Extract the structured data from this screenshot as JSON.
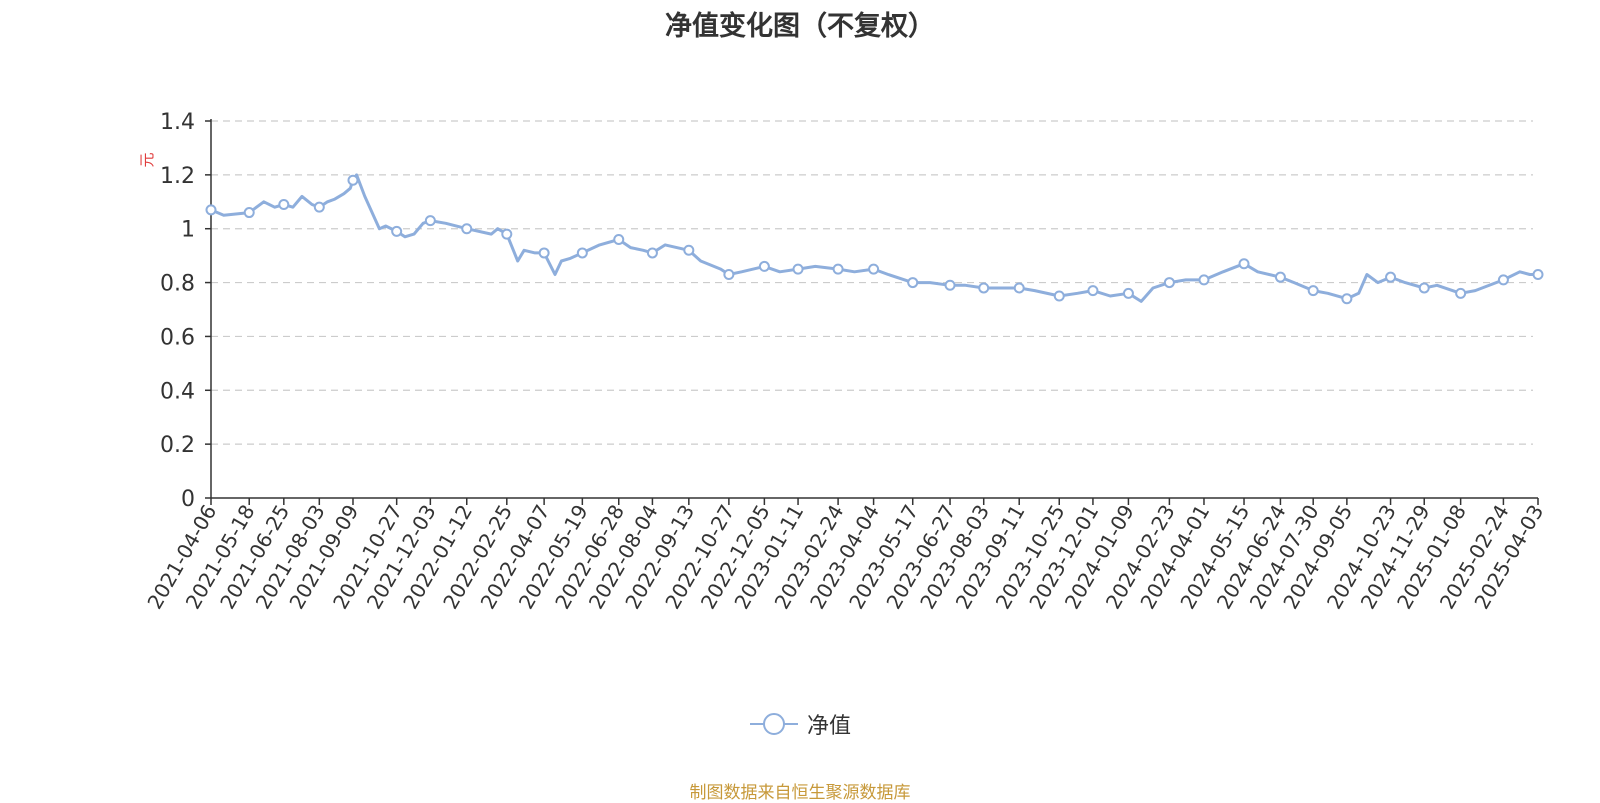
{
  "chart_data": {
    "type": "line",
    "title": "净值变化图（不复权）",
    "ylabel": "元",
    "ylim": [
      0,
      1.4
    ],
    "yticks": [
      "0",
      "0.2",
      "0.4",
      "0.6",
      "0.8",
      "1",
      "1.2",
      "1.4"
    ],
    "grid": true,
    "legend_position": "bottom",
    "x_tick_labels": [
      "2021-04-06",
      "2021-05-18",
      "2021-06-25",
      "2021-08-03",
      "2021-09-09",
      "2021-10-27",
      "2021-12-03",
      "2022-01-12",
      "2022-02-25",
      "2022-04-07",
      "2022-05-19",
      "2022-06-28",
      "2022-08-04",
      "2022-09-13",
      "2022-10-27",
      "2022-12-05",
      "2023-01-11",
      "2023-02-24",
      "2023-04-04",
      "2023-05-17",
      "2023-06-27",
      "2023-08-03",
      "2023-09-11",
      "2023-10-25",
      "2023-12-01",
      "2024-01-09",
      "2024-02-23",
      "2024-04-01",
      "2024-05-15",
      "2024-06-24",
      "2024-07-30",
      "2024-09-05",
      "2024-10-23",
      "2024-11-29",
      "2025-01-08",
      "2025-02-24",
      "2025-04-03"
    ],
    "series": [
      {
        "name": "净值",
        "color": "#8eaedc",
        "x": [
          "2021-04-06",
          "2021-04-20",
          "2021-05-18",
          "2021-05-26",
          "2021-06-03",
          "2021-06-15",
          "2021-06-25",
          "2021-07-05",
          "2021-07-15",
          "2021-07-26",
          "2021-08-03",
          "2021-08-12",
          "2021-08-20",
          "2021-08-30",
          "2021-09-06",
          "2021-09-09",
          "2021-09-13",
          "2021-09-22",
          "2021-10-08",
          "2021-10-15",
          "2021-10-27",
          "2021-11-05",
          "2021-11-15",
          "2021-11-25",
          "2021-12-03",
          "2021-12-20",
          "2022-01-12",
          "2022-02-08",
          "2022-02-15",
          "2022-02-25",
          "2022-03-09",
          "2022-03-16",
          "2022-03-28",
          "2022-04-07",
          "2022-04-19",
          "2022-04-26",
          "2022-05-06",
          "2022-05-19",
          "2022-06-07",
          "2022-06-28",
          "2022-07-11",
          "2022-07-25",
          "2022-08-04",
          "2022-08-18",
          "2022-09-13",
          "2022-09-26",
          "2022-10-18",
          "2022-10-27",
          "2022-11-10",
          "2022-12-05",
          "2022-12-22",
          "2023-01-11",
          "2023-01-30",
          "2023-02-24",
          "2023-03-14",
          "2023-04-04",
          "2023-04-20",
          "2023-05-17",
          "2023-06-05",
          "2023-06-27",
          "2023-07-14",
          "2023-08-03",
          "2023-08-22",
          "2023-09-11",
          "2023-09-28",
          "2023-10-25",
          "2023-11-14",
          "2023-12-01",
          "2023-12-20",
          "2024-01-09",
          "2024-01-23",
          "2024-02-05",
          "2024-02-23",
          "2024-03-12",
          "2024-04-01",
          "2024-04-22",
          "2024-05-15",
          "2024-05-30",
          "2024-06-24",
          "2024-07-09",
          "2024-07-30",
          "2024-08-15",
          "2024-09-05",
          "2024-09-18",
          "2024-09-27",
          "2024-10-09",
          "2024-10-23",
          "2024-11-08",
          "2024-11-29",
          "2024-12-13",
          "2025-01-08",
          "2025-01-24",
          "2025-02-24",
          "2025-03-14",
          "2025-03-25",
          "2025-04-03"
        ],
        "values": [
          1.07,
          1.05,
          1.06,
          1.08,
          1.1,
          1.08,
          1.09,
          1.08,
          1.12,
          1.09,
          1.08,
          1.1,
          1.11,
          1.13,
          1.15,
          1.18,
          1.2,
          1.12,
          1.0,
          1.01,
          0.99,
          0.97,
          0.98,
          1.02,
          1.03,
          1.02,
          1.0,
          0.98,
          1.0,
          0.98,
          0.88,
          0.92,
          0.91,
          0.91,
          0.83,
          0.88,
          0.89,
          0.91,
          0.94,
          0.96,
          0.93,
          0.92,
          0.91,
          0.94,
          0.92,
          0.88,
          0.85,
          0.83,
          0.84,
          0.86,
          0.84,
          0.85,
          0.86,
          0.85,
          0.84,
          0.85,
          0.83,
          0.8,
          0.8,
          0.79,
          0.79,
          0.78,
          0.78,
          0.78,
          0.77,
          0.75,
          0.76,
          0.77,
          0.75,
          0.76,
          0.73,
          0.78,
          0.8,
          0.81,
          0.81,
          0.84,
          0.87,
          0.84,
          0.82,
          0.8,
          0.77,
          0.76,
          0.74,
          0.76,
          0.83,
          0.8,
          0.82,
          0.8,
          0.78,
          0.79,
          0.76,
          0.77,
          0.81,
          0.84,
          0.83,
          0.83
        ],
        "markers_x": [
          "2021-04-06",
          "2021-05-18",
          "2021-06-25",
          "2021-08-03",
          "2021-09-09",
          "2021-10-27",
          "2021-12-03",
          "2022-01-12",
          "2022-02-25",
          "2022-04-07",
          "2022-05-19",
          "2022-06-28",
          "2022-08-04",
          "2022-09-13",
          "2022-10-27",
          "2022-12-05",
          "2023-01-11",
          "2023-02-24",
          "2023-04-04",
          "2023-05-17",
          "2023-06-27",
          "2023-08-03",
          "2023-09-11",
          "2023-10-25",
          "2023-12-01",
          "2024-01-09",
          "2024-02-23",
          "2024-04-01",
          "2024-05-15",
          "2024-06-24",
          "2024-07-30",
          "2024-09-05",
          "2024-10-23",
          "2024-11-29",
          "2025-01-08",
          "2025-02-24",
          "2025-04-03"
        ]
      }
    ],
    "source_note": "制图数据来自恒生聚源数据库"
  }
}
